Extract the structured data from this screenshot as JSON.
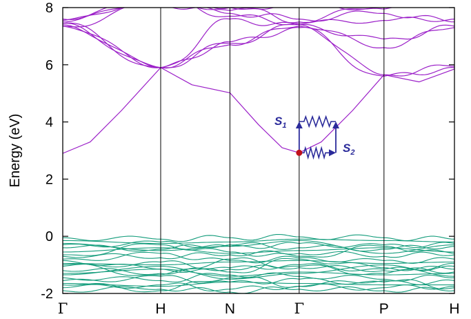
{
  "chart_data": {
    "type": "line",
    "title": "",
    "ylabel": "Energy (eV)",
    "ylim": [
      -2,
      8
    ],
    "yticks": [
      -2,
      0,
      2,
      4,
      6,
      8
    ],
    "kpoints": [
      {
        "label": "Γ",
        "pos": 0.0
      },
      {
        "label": "H",
        "pos": 0.25
      },
      {
        "label": "N",
        "pos": 0.4268
      },
      {
        "label": "Γ",
        "pos": 0.6036
      },
      {
        "label": "P",
        "pos": 0.8201
      },
      {
        "label": "H",
        "pos": 1.0
      }
    ],
    "conduction_color": "#9b1fc8",
    "valence_color": "#139c7b",
    "grid": false,
    "annotations": {
      "s1": "S",
      "s1_sub": "1",
      "s2": "S",
      "s2_sub": "2",
      "point_energy": 2.92,
      "point_color": "#c0101a",
      "arrow_color": "#2a2a9a"
    }
  }
}
